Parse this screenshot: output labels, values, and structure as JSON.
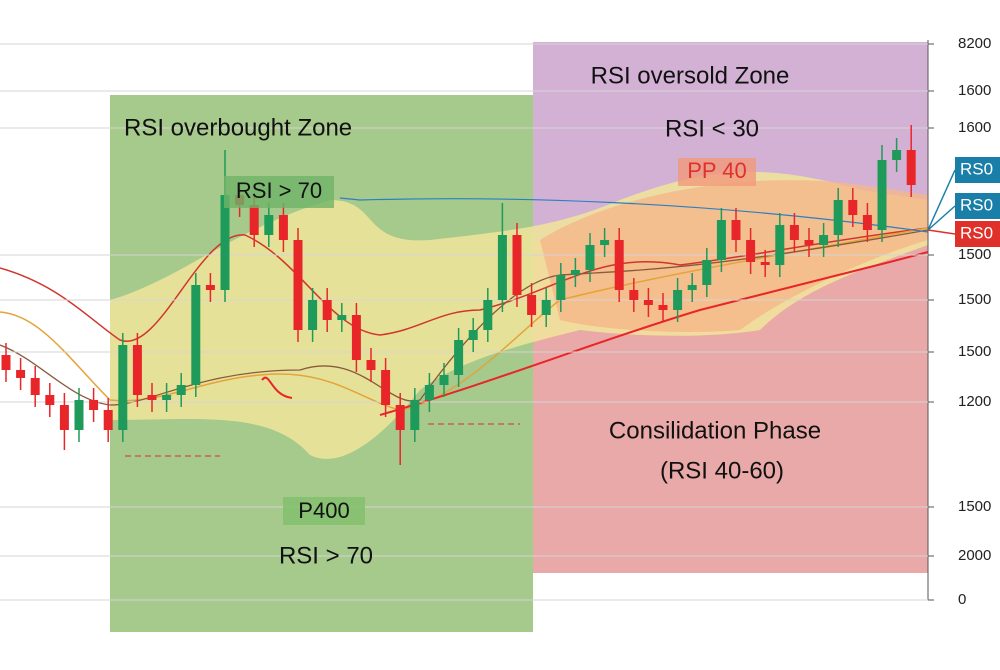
{
  "chart_data": {
    "type": "candlestick",
    "open": [
      245,
      230,
      222,
      205,
      195,
      170,
      200,
      190,
      170,
      255,
      205,
      200,
      205,
      215,
      315,
      310,
      405,
      395,
      365,
      385,
      360,
      270,
      300,
      280,
      285,
      240,
      230,
      195,
      170,
      200,
      215,
      225,
      260,
      270,
      300,
      365,
      305,
      285,
      300,
      325,
      330,
      355,
      360,
      310,
      300,
      295,
      290,
      310,
      315,
      340,
      380,
      360,
      338,
      335,
      375,
      360,
      355,
      365,
      400,
      385,
      370,
      440,
      450
    ],
    "high": [
      257,
      242,
      234,
      217,
      207,
      212,
      212,
      202,
      267,
      267,
      217,
      217,
      227,
      327,
      327,
      450,
      417,
      407,
      397,
      397,
      372,
      312,
      312,
      297,
      297,
      252,
      242,
      207,
      212,
      227,
      237,
      272,
      282,
      312,
      397,
      377,
      317,
      312,
      337,
      342,
      367,
      372,
      372,
      322,
      312,
      307,
      322,
      327,
      352,
      392,
      392,
      372,
      350,
      387,
      387,
      372,
      377,
      412,
      412,
      397,
      455,
      462,
      475
    ],
    "low": [
      218,
      210,
      193,
      183,
      150,
      158,
      178,
      158,
      158,
      193,
      188,
      188,
      193,
      203,
      298,
      298,
      383,
      353,
      353,
      348,
      258,
      258,
      268,
      268,
      228,
      218,
      183,
      135,
      158,
      188,
      203,
      213,
      248,
      258,
      288,
      293,
      273,
      273,
      288,
      313,
      318,
      343,
      298,
      288,
      283,
      278,
      278,
      298,
      303,
      328,
      348,
      326,
      323,
      323,
      348,
      343,
      343,
      353,
      373,
      358,
      358,
      428,
      403
    ],
    "close": [
      230,
      222,
      205,
      195,
      170,
      200,
      190,
      170,
      255,
      205,
      200,
      205,
      215,
      315,
      310,
      405,
      395,
      365,
      385,
      360,
      270,
      300,
      280,
      285,
      240,
      230,
      195,
      170,
      200,
      215,
      225,
      260,
      270,
      300,
      365,
      305,
      285,
      300,
      325,
      330,
      355,
      360,
      310,
      300,
      295,
      290,
      310,
      315,
      340,
      380,
      360,
      338,
      335,
      375,
      360,
      355,
      365,
      400,
      385,
      370,
      440,
      450,
      415
    ],
    "up_color": "#1e9a5a",
    "down_color": "#e8262a",
    "ylim": [
      0,
      556
    ],
    "y_axis_labels": [
      "8200",
      "1600",
      "1600",
      "1500",
      "1500",
      "1500",
      "1200",
      "1500",
      "2000",
      "0"
    ],
    "price_tags": [
      {
        "label": "RS0",
        "color": "#1a7fa8"
      },
      {
        "label": "RS0",
        "color": "#1a7fa8"
      },
      {
        "label": "RS0",
        "color": "#e0302a"
      }
    ],
    "annotations": {
      "overbought_title": "RSI overbought Zone",
      "overbought_tag": "RSI > 70",
      "overbought_p": "P400",
      "overbought_rule": "RSI > 70",
      "oversold_title": "RSI oversold Zone",
      "oversold_rule": "RSI < 30",
      "oversold_tag": "PP 40",
      "consolidation_title": "Consilidation Phase",
      "consolidation_rule": "(RSI 40-60)"
    }
  }
}
